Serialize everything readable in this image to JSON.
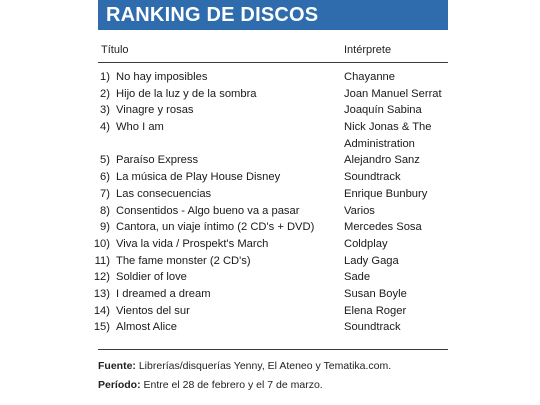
{
  "banner": {
    "title": "RANKING DE DISCOS"
  },
  "headers": {
    "title": "Título",
    "artist": "Intérprete"
  },
  "rows": [
    {
      "rank": "1)",
      "title": "No hay imposibles",
      "note": "",
      "artist": "Chayanne"
    },
    {
      "rank": "2)",
      "title": "Hijo de la luz y de la sombra",
      "note": "",
      "artist": "Joan Manuel Serrat"
    },
    {
      "rank": "3)",
      "title": "Vinagre y rosas",
      "note": "",
      "artist": "Joaquín Sabina"
    },
    {
      "rank": "4)",
      "title": "Who I am",
      "note": "",
      "artist": "Nick Jonas & The Administration"
    },
    {
      "rank": "5)",
      "title": "Paraíso Express",
      "note": "",
      "artist": "Alejandro Sanz"
    },
    {
      "rank": "6)",
      "title": "La música de Play House Disney",
      "note": "",
      "artist": "Soundtrack"
    },
    {
      "rank": "7)",
      "title": "Las consecuencias",
      "note": "",
      "artist": "Enrique Bunbury"
    },
    {
      "rank": "8)",
      "title": "Consentidos - Algo bueno va a pasar",
      "note": "",
      "artist": "Varios"
    },
    {
      "rank": "9)",
      "title": "Cantora, un viaje íntimo",
      "note": "(2 CD's + DVD)",
      "artist": "Mercedes Sosa"
    },
    {
      "rank": "10)",
      "title": "Viva la vida / Prospekt's March",
      "note": "",
      "artist": "Coldplay"
    },
    {
      "rank": "11)",
      "title": "The fame monster",
      "note": "(2 CD's)",
      "artist": "Lady Gaga"
    },
    {
      "rank": "12)",
      "title": "Soldier of love",
      "note": "",
      "artist": "Sade"
    },
    {
      "rank": "13)",
      "title": "I dreamed a dream",
      "note": "",
      "artist": "Susan Boyle"
    },
    {
      "rank": "14)",
      "title": "Vientos del sur",
      "note": "",
      "artist": "Elena Roger"
    },
    {
      "rank": "15)",
      "title": "Almost Alice",
      "note": "",
      "artist": "Soundtrack"
    }
  ],
  "footer": {
    "source_label": "Fuente:",
    "source_text": "Librerías/disquerías Yenny, El Ateneo y Tematika.com.",
    "period_label": "Período:",
    "period_text": "Entre el 28 de febrero y el 7 de marzo."
  }
}
